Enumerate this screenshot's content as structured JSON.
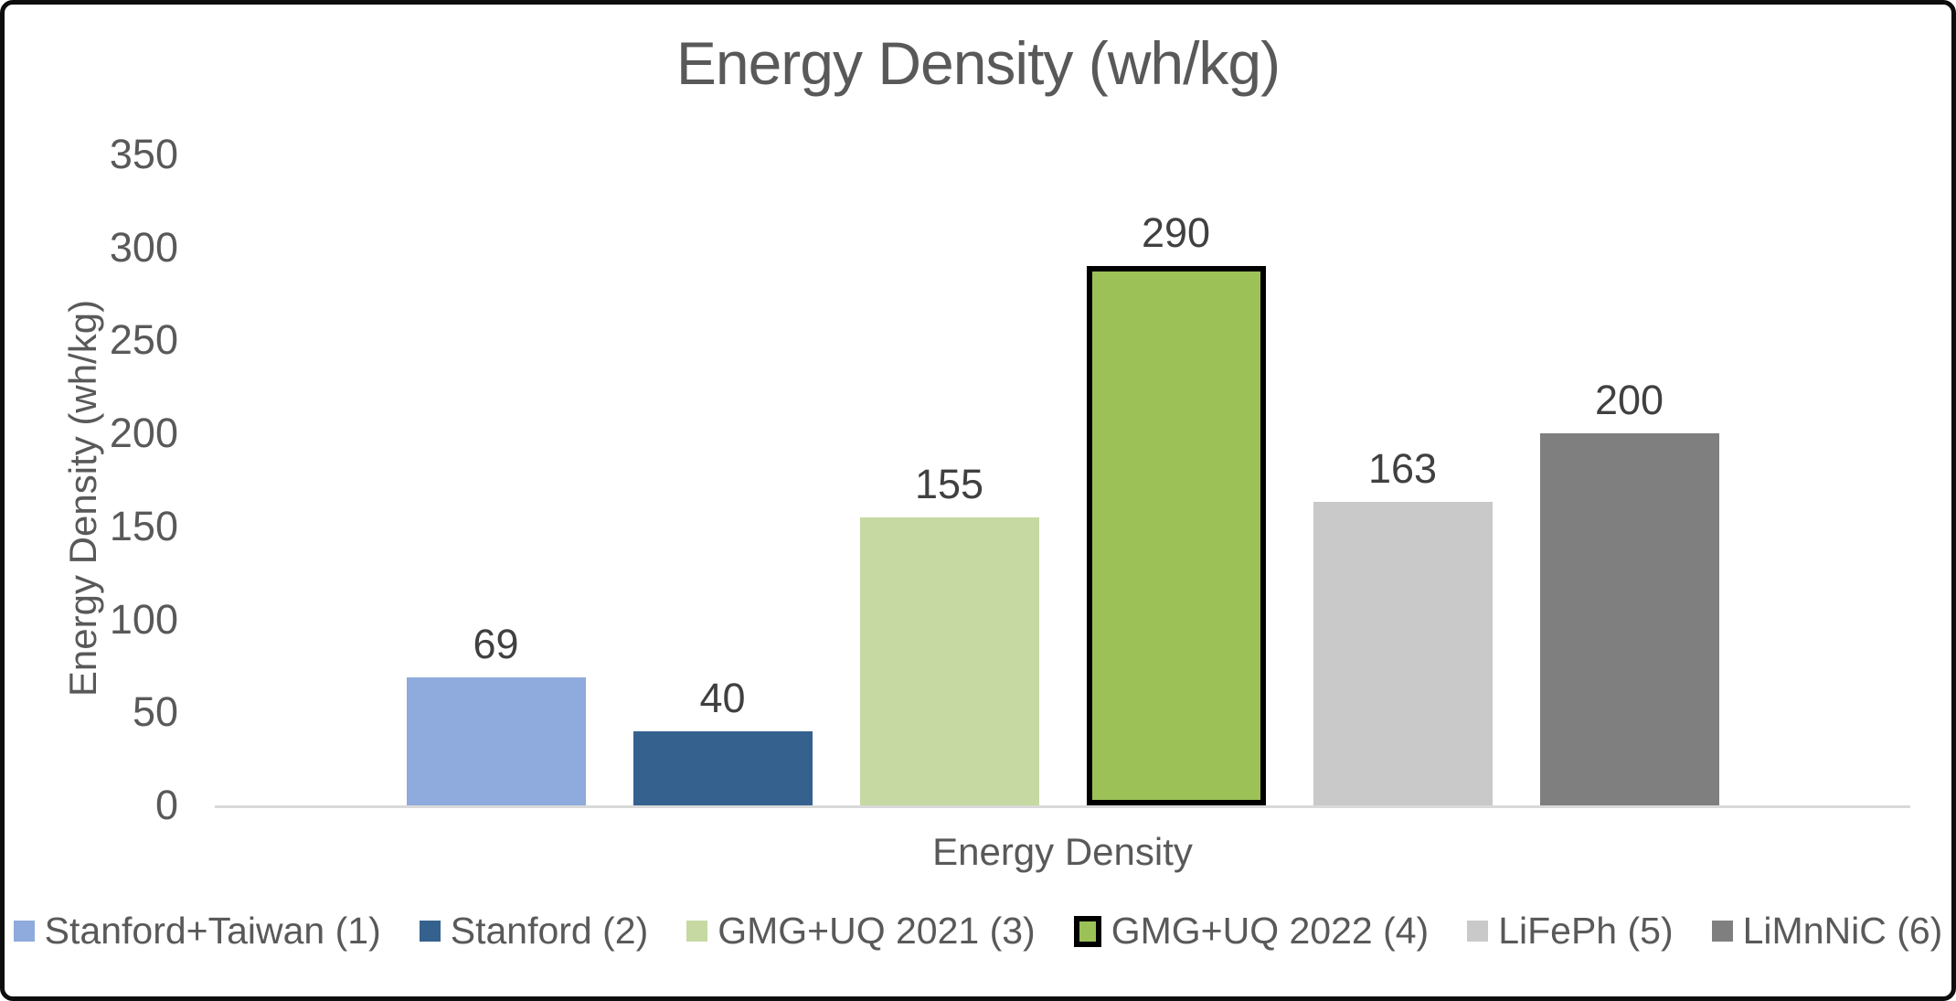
{
  "chart_data": {
    "type": "bar",
    "title": "Energy Density (wh/kg)",
    "xlabel": "Energy Density",
    "ylabel": "Energy Density (wh/kg)",
    "ylim": [
      0,
      350
    ],
    "ytick_labels": [
      "0",
      "50",
      "100",
      "150",
      "200",
      "250",
      "300",
      "350"
    ],
    "grid": false,
    "legend_position": "bottom",
    "categories": [
      "Stanford+Taiwan (1)",
      "Stanford (2)",
      "GMG+UQ 2021 (3)",
      "GMG+UQ 2022 (4)",
      "LiFePh (5)",
      "LiMnNiC (6)"
    ],
    "values": [
      69,
      40,
      155,
      290,
      163,
      200
    ],
    "bar_colors": [
      "#8FAADC",
      "#35618F",
      "#C6D9A2",
      "#9CC257",
      "#C9C9C9",
      "#7F7F7F"
    ],
    "highlighted_bar": "GMG+UQ 2022 (4)",
    "highlight_outline_color": "#000000",
    "text_color": "#595959",
    "data_label_color": "#404040",
    "axis_line_color": "#D9D9D9"
  }
}
